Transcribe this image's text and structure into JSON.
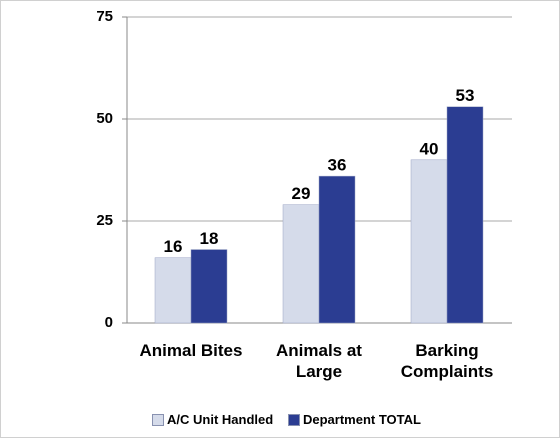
{
  "chart_data": {
    "type": "bar",
    "categories": [
      "Animal Bites",
      "Animals at Large",
      "Barking Complaints"
    ],
    "series": [
      {
        "name": "A/C Unit Handled",
        "color": "#d5dbea",
        "values": [
          16,
          29,
          40
        ]
      },
      {
        "name": "Department TOTAL",
        "color": "#2b3d92",
        "values": [
          18,
          36,
          53
        ]
      }
    ],
    "ylim": [
      0,
      75
    ],
    "yticks": [
      0,
      25,
      50,
      75
    ],
    "grid": true,
    "legend": "bottom"
  }
}
